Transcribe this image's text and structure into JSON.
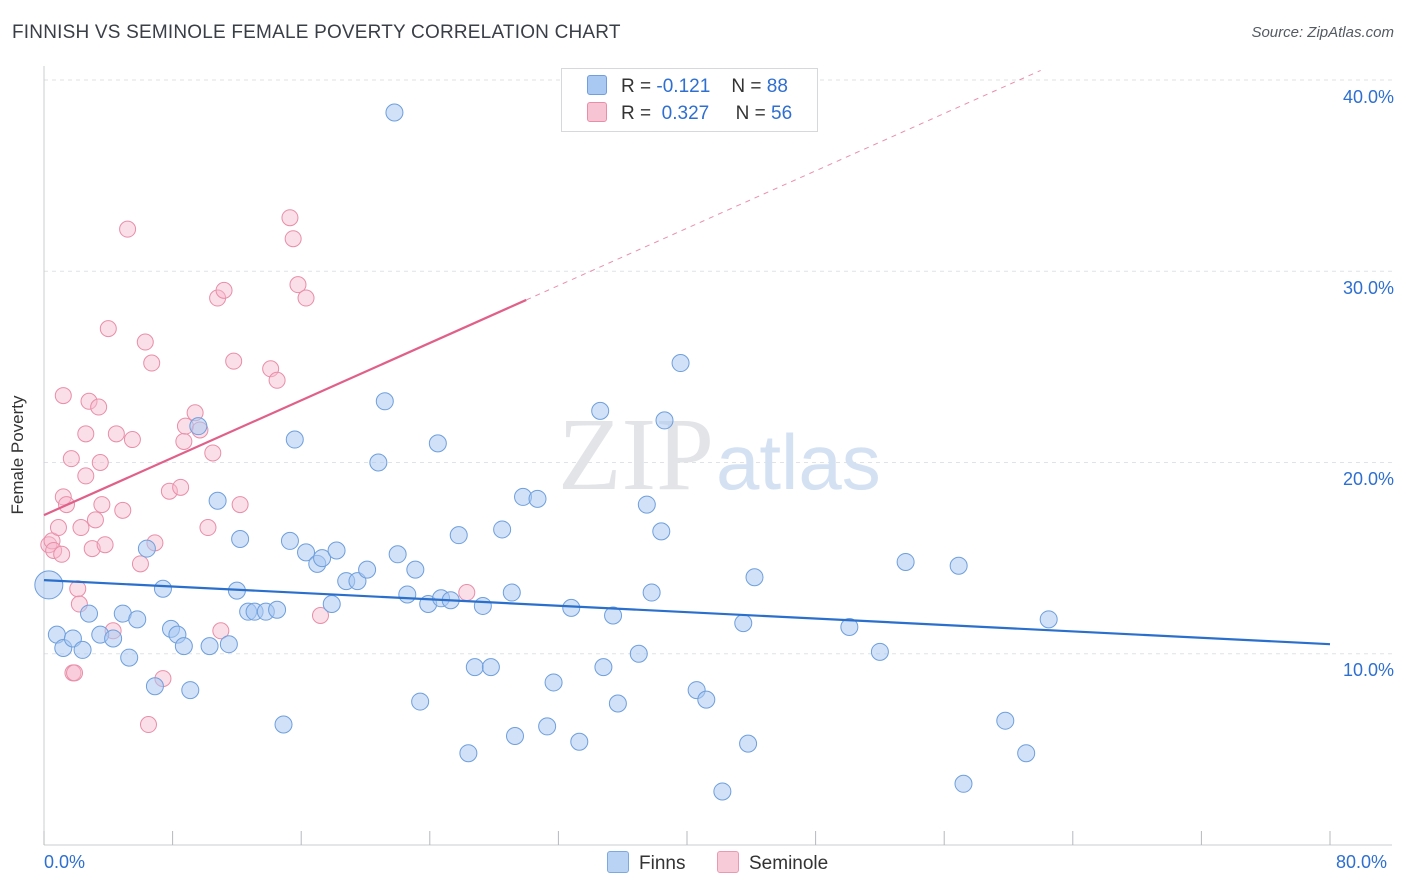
{
  "title": "FINNISH VS SEMINOLE FEMALE POVERTY CORRELATION CHART",
  "source": "Source: ZipAtlas.com",
  "watermark": {
    "zip": "ZIP",
    "atlas": "atlas"
  },
  "colors": {
    "finns_fill": "#a9c8f2",
    "finns_stroke": "#6f9fdc",
    "finns_line": "#2a6fcc",
    "seminole_fill": "#f6b9cb",
    "seminole_stroke": "#e88ea9",
    "seminole_line": "#e0608a",
    "tick_text": "#2e6fcf",
    "grid": "#dfe2e6"
  },
  "legend": {
    "rows": [
      {
        "r_label": "R =",
        "r_value": "-0.121",
        "n_label": "N =",
        "n_value": "88"
      },
      {
        "r_label": "R =",
        "r_value": "0.327",
        "n_label": "N =",
        "n_value": "56"
      }
    ]
  },
  "bottom_legend": {
    "finns": "Finns",
    "seminole": "Seminole"
  },
  "chart_data": {
    "type": "scatter",
    "title": "FINNISH VS SEMINOLE FEMALE POVERTY CORRELATION CHART",
    "xlabel": "",
    "ylabel": "Female Poverty",
    "xlim": [
      0,
      80
    ],
    "ylim": [
      0,
      40
    ],
    "x_tick_labels": [
      "0.0%",
      "80.0%"
    ],
    "y_ticks": [
      10,
      20,
      30,
      40
    ],
    "y_tick_labels": [
      "10.0%",
      "20.0%",
      "30.0%",
      "40.0%"
    ],
    "grid": true,
    "legend_position": "top-center",
    "series": [
      {
        "name": "Finns",
        "r": -0.121,
        "n": 88,
        "trend": {
          "x": [
            0,
            80
          ],
          "y": [
            13.85,
            10.5
          ]
        },
        "points": [
          [
            0.3,
            13.6
          ],
          [
            0.8,
            11.0
          ],
          [
            1.2,
            10.3
          ],
          [
            1.8,
            10.8
          ],
          [
            2.4,
            10.2
          ],
          [
            2.8,
            12.1
          ],
          [
            3.5,
            11.0
          ],
          [
            4.3,
            10.8
          ],
          [
            4.9,
            12.1
          ],
          [
            5.3,
            9.8
          ],
          [
            5.8,
            11.8
          ],
          [
            6.4,
            15.5
          ],
          [
            6.9,
            8.3
          ],
          [
            7.4,
            13.4
          ],
          [
            7.9,
            11.3
          ],
          [
            8.3,
            11.0
          ],
          [
            8.7,
            10.4
          ],
          [
            9.1,
            8.1
          ],
          [
            9.6,
            21.9
          ],
          [
            10.3,
            10.4
          ],
          [
            10.8,
            18.0
          ],
          [
            11.5,
            10.5
          ],
          [
            12.0,
            13.3
          ],
          [
            12.2,
            16.0
          ],
          [
            12.7,
            12.2
          ],
          [
            13.1,
            12.2
          ],
          [
            13.8,
            12.2
          ],
          [
            14.5,
            12.3
          ],
          [
            14.9,
            6.3
          ],
          [
            15.3,
            15.9
          ],
          [
            15.6,
            21.2
          ],
          [
            16.3,
            15.3
          ],
          [
            17.0,
            14.7
          ],
          [
            17.3,
            15.0
          ],
          [
            17.9,
            12.6
          ],
          [
            18.2,
            15.4
          ],
          [
            18.8,
            13.8
          ],
          [
            19.5,
            13.8
          ],
          [
            20.1,
            14.4
          ],
          [
            20.8,
            20.0
          ],
          [
            21.2,
            23.2
          ],
          [
            22.0,
            15.2
          ],
          [
            21.8,
            38.3
          ],
          [
            22.6,
            13.1
          ],
          [
            23.1,
            14.4
          ],
          [
            23.4,
            7.5
          ],
          [
            23.9,
            12.6
          ],
          [
            24.5,
            21.0
          ],
          [
            24.7,
            12.9
          ],
          [
            25.3,
            12.8
          ],
          [
            25.8,
            16.2
          ],
          [
            26.4,
            4.8
          ],
          [
            26.8,
            9.3
          ],
          [
            27.3,
            12.5
          ],
          [
            27.8,
            9.3
          ],
          [
            28.5,
            16.5
          ],
          [
            29.1,
            13.2
          ],
          [
            29.3,
            5.7
          ],
          [
            29.8,
            18.2
          ],
          [
            30.7,
            18.1
          ],
          [
            31.3,
            6.2
          ],
          [
            31.7,
            8.5
          ],
          [
            32.8,
            12.4
          ],
          [
            33.3,
            5.4
          ],
          [
            34.6,
            22.7
          ],
          [
            34.8,
            9.3
          ],
          [
            35.4,
            12.0
          ],
          [
            35.7,
            7.4
          ],
          [
            37.0,
            10.0
          ],
          [
            37.5,
            17.8
          ],
          [
            37.8,
            13.2
          ],
          [
            38.4,
            16.4
          ],
          [
            38.6,
            22.2
          ],
          [
            39.6,
            25.2
          ],
          [
            40.6,
            8.1
          ],
          [
            41.2,
            7.6
          ],
          [
            42.2,
            2.8
          ],
          [
            43.5,
            11.6
          ],
          [
            43.8,
            5.3
          ],
          [
            44.2,
            14.0
          ],
          [
            50.1,
            11.4
          ],
          [
            52.0,
            10.1
          ],
          [
            53.6,
            14.8
          ],
          [
            56.9,
            14.6
          ],
          [
            57.2,
            3.2
          ],
          [
            59.8,
            6.5
          ],
          [
            61.1,
            4.8
          ],
          [
            62.5,
            11.8
          ]
        ]
      },
      {
        "name": "Seminole",
        "r": 0.327,
        "n": 56,
        "trend": {
          "x": [
            0,
            30
          ],
          "y": [
            17.25,
            28.5
          ]
        },
        "points": [
          [
            0.3,
            15.7
          ],
          [
            0.5,
            15.9
          ],
          [
            0.6,
            15.4
          ],
          [
            0.9,
            16.6
          ],
          [
            1.1,
            15.2
          ],
          [
            1.2,
            18.2
          ],
          [
            1.2,
            23.5
          ],
          [
            1.4,
            17.8
          ],
          [
            1.7,
            20.2
          ],
          [
            1.8,
            9.0
          ],
          [
            1.9,
            9.0
          ],
          [
            2.1,
            13.4
          ],
          [
            2.2,
            12.6
          ],
          [
            2.3,
            16.6
          ],
          [
            2.6,
            21.5
          ],
          [
            2.6,
            19.3
          ],
          [
            2.8,
            23.2
          ],
          [
            3.0,
            15.5
          ],
          [
            3.2,
            17.0
          ],
          [
            3.4,
            22.9
          ],
          [
            3.5,
            20.0
          ],
          [
            3.6,
            17.8
          ],
          [
            3.8,
            15.7
          ],
          [
            4.0,
            27.0
          ],
          [
            4.3,
            11.2
          ],
          [
            4.5,
            21.5
          ],
          [
            4.9,
            17.5
          ],
          [
            5.2,
            32.2
          ],
          [
            5.5,
            21.2
          ],
          [
            6.3,
            26.3
          ],
          [
            6.5,
            6.3
          ],
          [
            6.7,
            25.2
          ],
          [
            6.9,
            15.8
          ],
          [
            7.4,
            8.7
          ],
          [
            7.8,
            18.5
          ],
          [
            8.5,
            18.7
          ],
          [
            8.7,
            21.1
          ],
          [
            8.8,
            21.9
          ],
          [
            9.4,
            22.6
          ],
          [
            9.7,
            21.7
          ],
          [
            10.2,
            16.6
          ],
          [
            10.5,
            20.5
          ],
          [
            10.8,
            28.6
          ],
          [
            11.0,
            11.2
          ],
          [
            11.2,
            29.0
          ],
          [
            11.8,
            25.3
          ],
          [
            12.2,
            17.8
          ],
          [
            14.1,
            24.9
          ],
          [
            14.5,
            24.3
          ],
          [
            15.3,
            32.8
          ],
          [
            15.5,
            31.7
          ],
          [
            15.8,
            29.3
          ],
          [
            16.3,
            28.6
          ],
          [
            17.2,
            12.0
          ],
          [
            26.3,
            13.2
          ],
          [
            6.0,
            14.7
          ]
        ]
      }
    ]
  }
}
